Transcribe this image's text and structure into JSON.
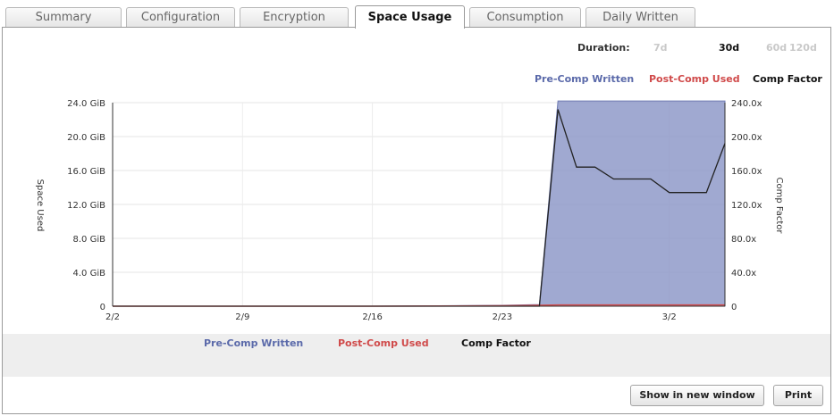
{
  "tabs": [
    {
      "label": "Summary"
    },
    {
      "label": "Configuration"
    },
    {
      "label": "Encryption"
    },
    {
      "label": "Space Usage",
      "active": true
    },
    {
      "label": "Consumption"
    },
    {
      "label": "Daily Written"
    }
  ],
  "duration": {
    "label": "Duration:",
    "options": [
      "7d",
      "30d",
      "60d",
      "120d"
    ],
    "selected": "30d"
  },
  "legend": {
    "pre_comp": "Pre-Comp Written",
    "post_comp": "Post-Comp Used",
    "comp_factor": "Comp Factor"
  },
  "buttons": {
    "show_new_window": "Show in new window",
    "print": "Print"
  },
  "colors": {
    "pre_comp": "#8f9ac9",
    "post_comp": "#d04a4a",
    "comp_factor": "#222222"
  },
  "chart_data": {
    "type": "area",
    "xlabel": "",
    "ylabel": "Space Used",
    "y2label": "Comp Factor",
    "x_ticks": [
      "2/2",
      "2/9",
      "2/16",
      "2/23",
      "3/2"
    ],
    "y_ticks": [
      "0",
      "4.0 GiB",
      "8.0 GiB",
      "12.0 GiB",
      "16.0 GiB",
      "20.0 GiB",
      "24.0 GiB"
    ],
    "y2_ticks": [
      "0",
      "40.0x",
      "80.0x",
      "120.0x",
      "160.0x",
      "200.0x",
      "240.0x"
    ],
    "ylim": [
      0,
      24
    ],
    "y2lim": [
      0,
      240
    ],
    "xlim": [
      "2/2",
      "3/5"
    ],
    "grid": true,
    "legend_position": "top-right",
    "x": [
      "2/2",
      "2/9",
      "2/16",
      "2/23",
      "2/25",
      "2/26",
      "2/27",
      "2/28",
      "2/29",
      "3/1",
      "3/2",
      "3/3",
      "3/4",
      "3/5"
    ],
    "series": [
      {
        "name": "Pre-Comp Written",
        "axis": "left",
        "values": [
          0,
          0,
          0,
          0.1,
          0.2,
          24.2,
          24.2,
          24.2,
          24.2,
          24.2,
          24.2,
          24.2,
          24.2,
          24.2
        ]
      },
      {
        "name": "Post-Comp Used",
        "axis": "left",
        "values": [
          0,
          0,
          0,
          0.05,
          0.1,
          0.15,
          0.15,
          0.15,
          0.15,
          0.15,
          0.15,
          0.15,
          0.15,
          0.15
        ]
      },
      {
        "name": "Comp Factor",
        "axis": "right",
        "values": [
          0,
          0,
          0,
          0,
          0,
          232,
          164,
          164,
          150,
          150,
          134,
          134,
          134,
          192
        ]
      }
    ]
  }
}
